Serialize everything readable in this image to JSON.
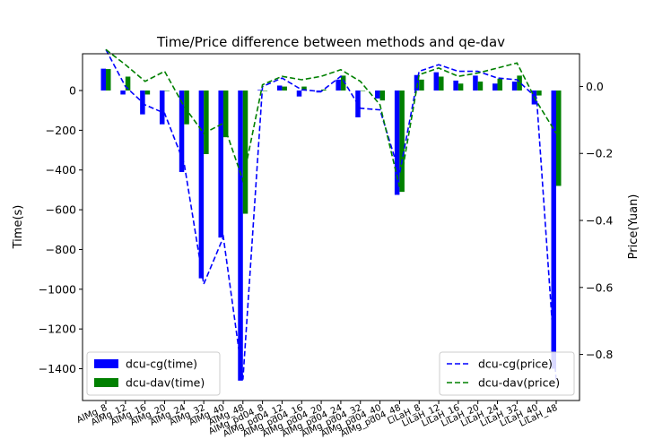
{
  "chart_data": {
    "type": "bar",
    "title": "Time/Price difference between methods and qe-dav",
    "ylabel_left": "Time(s)",
    "ylabel_right": "Price(Yuan)",
    "ylim_left": [
      -1560,
      185
    ],
    "ylim_right": [
      -0.9375,
      0.0975
    ],
    "yticks_left": [
      0,
      -200,
      -400,
      -600,
      -800,
      -1000,
      -1200,
      -1400
    ],
    "yticks_right": [
      0.0,
      -0.2,
      -0.4,
      -0.6,
      -0.8
    ],
    "categories": [
      "AlMg_8",
      "AlMg_12",
      "AlMg_16",
      "AlMg_20",
      "AlMg_24",
      "AlMg_32",
      "AlMg_40",
      "AlMg_48",
      "AlMg_pd04_8",
      "AlMg_pd04_12",
      "AlMg_pd04_16",
      "AlMg_pd04_20",
      "AlMg_pd04_24",
      "AlMg_pd04_32",
      "AlMg_pd04_40",
      "AlMg_pd04_48",
      "LiLaH_8",
      "LiLaH_12",
      "LiLaH_16",
      "LiLaH_20",
      "LiLaH_24",
      "LiLaH_32",
      "LiLaH_40",
      "LiLaH_48"
    ],
    "bar_series": [
      {
        "name": "dcu-cg(time)",
        "color": "#0000ff",
        "values": [
          110,
          -20,
          -120,
          -170,
          -410,
          -945,
          -740,
          -1460,
          3,
          25,
          -30,
          -10,
          55,
          -135,
          -40,
          -525,
          78,
          92,
          50,
          75,
          35,
          45,
          -70,
          -1400
        ]
      },
      {
        "name": "dcu-dav(time)",
        "color": "#008000",
        "values": [
          108,
          70,
          -20,
          0,
          -170,
          -320,
          -235,
          -620,
          -2,
          20,
          20,
          5,
          75,
          0,
          -50,
          -510,
          55,
          70,
          35,
          45,
          60,
          75,
          -25,
          -480
        ]
      }
    ],
    "line_series": [
      {
        "name": "dcu-cg(price)",
        "color": "#0000ff",
        "values": [
          0.11,
          0.0,
          -0.055,
          -0.08,
          -0.23,
          -0.59,
          -0.45,
          -0.875,
          0.0,
          0.025,
          -0.01,
          -0.015,
          0.03,
          -0.065,
          -0.07,
          -0.26,
          0.045,
          0.065,
          0.045,
          0.045,
          0.025,
          0.02,
          -0.035,
          -0.88
        ]
      },
      {
        "name": "dcu-dav(price)",
        "color": "#008000",
        "values": [
          0.11,
          0.065,
          0.015,
          0.045,
          -0.06,
          -0.14,
          -0.11,
          -0.28,
          0.005,
          0.03,
          0.02,
          0.03,
          0.05,
          0.015,
          -0.055,
          -0.3,
          0.035,
          0.055,
          0.03,
          0.04,
          0.055,
          0.07,
          -0.045,
          -0.14
        ]
      }
    ],
    "legend_left": "lower left",
    "legend_right": "lower right",
    "grid": false
  }
}
